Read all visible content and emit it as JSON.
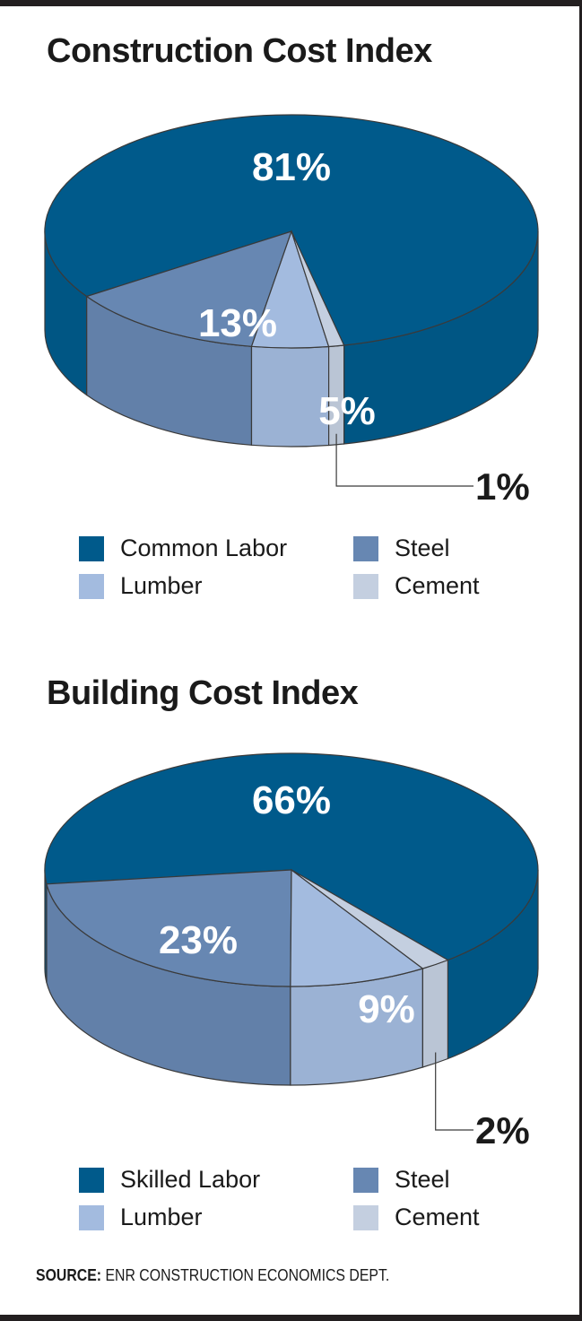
{
  "chart_data": [
    {
      "type": "pie",
      "title": "Construction Cost Index",
      "categories": [
        "Common Labor",
        "Steel",
        "Lumber",
        "Cement"
      ],
      "values": [
        81,
        13,
        5,
        1
      ],
      "labels": [
        "81%",
        "13%",
        "5%",
        "1%"
      ],
      "colors": [
        "#005a8b",
        "#6787b2",
        "#a3bbdf",
        "#c4cfe0"
      ],
      "legend_position": "bottom",
      "three_d": true
    },
    {
      "type": "pie",
      "title": "Building Cost Index",
      "categories": [
        "Skilled Labor",
        "Steel",
        "Lumber",
        "Cement"
      ],
      "values": [
        66,
        23,
        9,
        2
      ],
      "labels": [
        "66%",
        "23%",
        "9%",
        "2%"
      ],
      "colors": [
        "#005a8b",
        "#6787b2",
        "#a3bbdf",
        "#c4cfe0"
      ],
      "legend_position": "bottom",
      "three_d": true
    }
  ],
  "source": {
    "label": "SOURCE:",
    "text": "ENR CONSTRUCTION ECONOMICS DEPT."
  }
}
